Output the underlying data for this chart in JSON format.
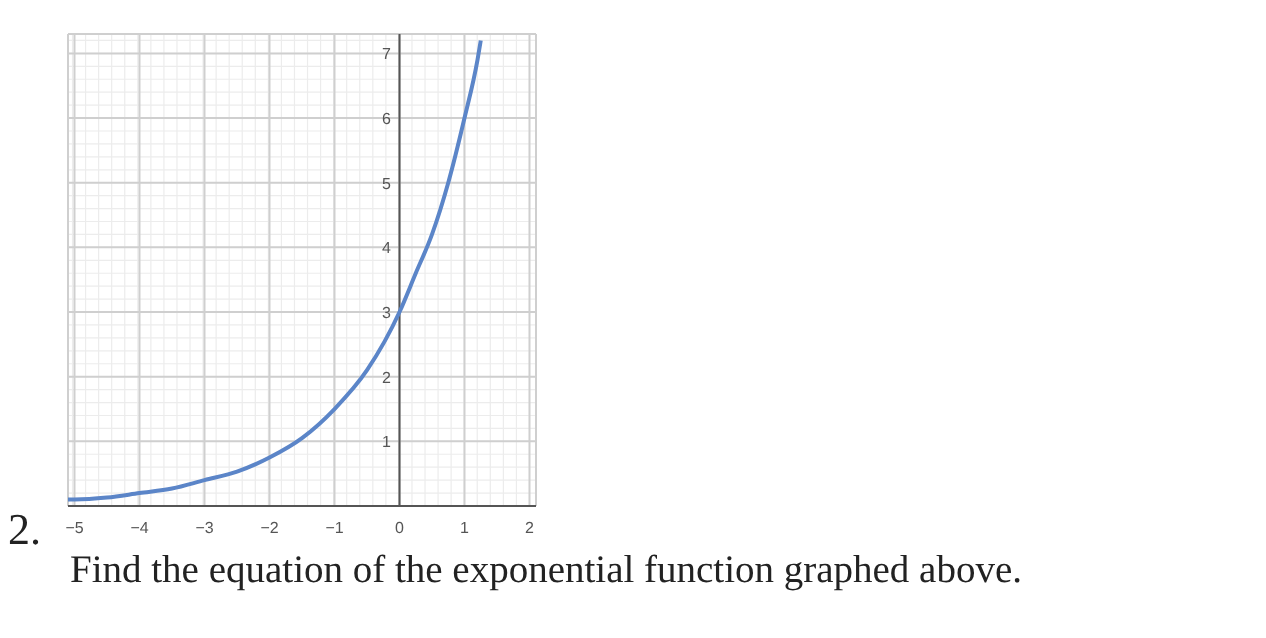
{
  "chart_data": {
    "type": "line",
    "x": [
      -5.1,
      -5,
      -4.5,
      -4,
      -3.5,
      -3,
      -2.5,
      -2,
      -1.5,
      -1,
      -0.5,
      0,
      0.25,
      0.5,
      0.75,
      1,
      1.2,
      1.25
    ],
    "series": [
      {
        "color": "#5b85c8",
        "values": [
          0.1,
          0.1,
          0.13,
          0.2,
          0.27,
          0.4,
          0.53,
          0.75,
          1.05,
          1.5,
          2.1,
          3,
          3.6,
          4.2,
          5,
          6,
          6.9,
          7.2
        ]
      }
    ],
    "xlim": [
      -5.1,
      2.1
    ],
    "ylim": [
      0,
      7.3
    ],
    "xticks": [
      -5,
      -4,
      -3,
      -2,
      -1,
      0,
      1,
      2
    ],
    "yticks": [
      1,
      2,
      3,
      4,
      5,
      6,
      7
    ],
    "grid": true,
    "annotations": [
      "2.",
      "Find the equation of the exponential function graphed above."
    ]
  }
}
